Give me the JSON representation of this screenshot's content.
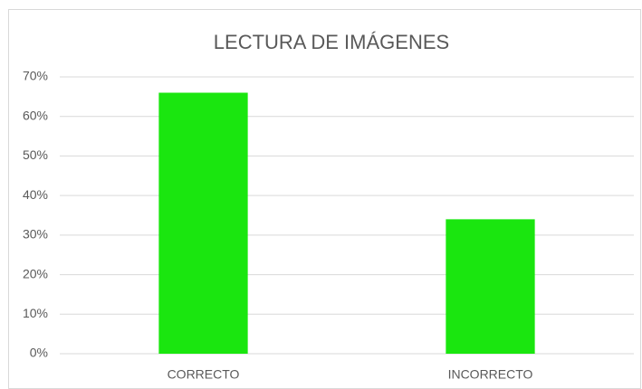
{
  "chart_data": {
    "type": "bar",
    "title": "LECTURA DE IMÁGENES",
    "categories": [
      "CORRECTO",
      "INCORRECTO"
    ],
    "values": [
      66,
      34
    ],
    "color": "#1ae60f",
    "ylim": [
      0,
      70
    ],
    "yticks": [
      {
        "value": 0,
        "label": "0%"
      },
      {
        "value": 10,
        "label": "10%"
      },
      {
        "value": 20,
        "label": "20%"
      },
      {
        "value": 30,
        "label": "30%"
      },
      {
        "value": 40,
        "label": "40%"
      },
      {
        "value": 50,
        "label": "50%"
      },
      {
        "value": 60,
        "label": "60%"
      },
      {
        "value": 70,
        "label": "70%"
      }
    ],
    "grid": true
  }
}
